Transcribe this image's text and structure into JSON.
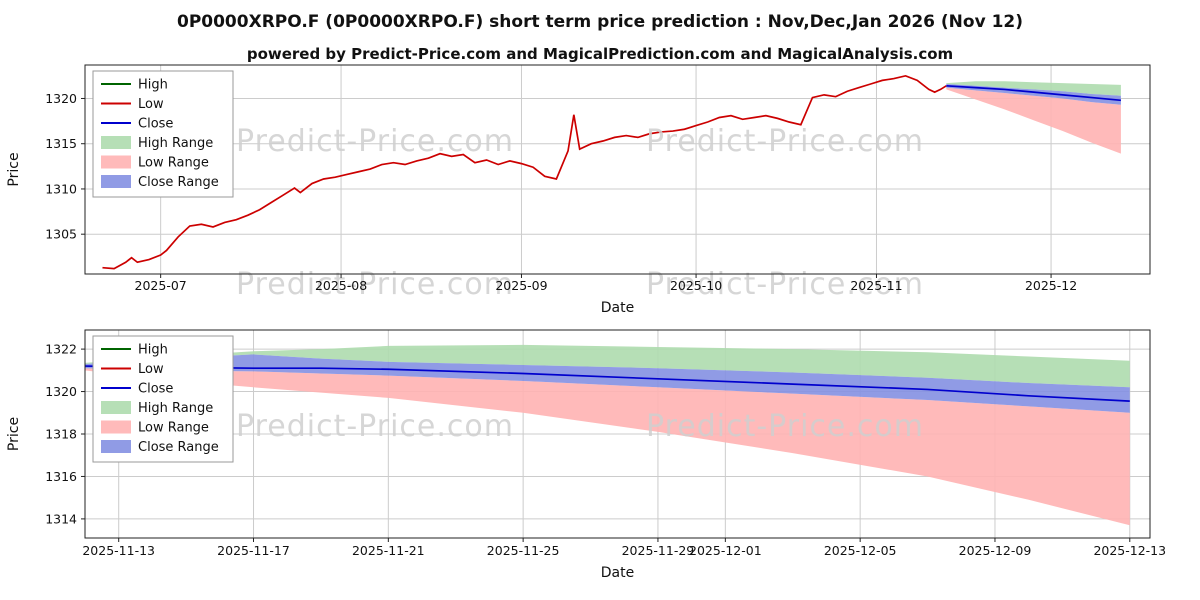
{
  "header": {
    "title": "0P0000XRPO.F (0P0000XRPO.F) short term price prediction : Nov,Dec,Jan 2026 (Nov 12)",
    "subtitle": "powered by Predict-Price.com and MagicalPrediction.com and MagicalAnalysis.com"
  },
  "watermark": "Predict-Price.com",
  "colors": {
    "high": "#006400",
    "low": "#cc0000",
    "close": "#0000cd",
    "high_range": "#aedcae",
    "low_range": "#ffb3b3",
    "close_range": "#8490e2",
    "grid": "#cccccc",
    "frame": "#222222",
    "watermark": "#cfcfcf"
  },
  "legend": [
    {
      "label": "High",
      "type": "line",
      "color": "high"
    },
    {
      "label": "Low",
      "type": "line",
      "color": "low"
    },
    {
      "label": "Close",
      "type": "line",
      "color": "close"
    },
    {
      "label": "High Range",
      "type": "band",
      "color": "high_range"
    },
    {
      "label": "Low Range",
      "type": "band",
      "color": "low_range"
    },
    {
      "label": "Close Range",
      "type": "band",
      "color": "close_range"
    }
  ],
  "chart_data": [
    {
      "type": "line",
      "name": "history-with-forecast",
      "xlabel": "Date",
      "ylabel": "Price",
      "x_unit": "days since 2025-06-18",
      "xlim": [
        0,
        183
      ],
      "ylim": [
        1300.6,
        1323.7
      ],
      "x_ticks": [
        {
          "v": 13,
          "label": "2025-07"
        },
        {
          "v": 44,
          "label": "2025-08"
        },
        {
          "v": 75,
          "label": "2025-09"
        },
        {
          "v": 105,
          "label": "2025-10"
        },
        {
          "v": 136,
          "label": "2025-11"
        },
        {
          "v": 166,
          "label": "2025-12"
        }
      ],
      "y_ticks": [
        1305,
        1310,
        1315,
        1320
      ],
      "grid": true,
      "legend_position": "upper-left",
      "lines": [
        {
          "name": "low-history",
          "color": "low",
          "points": [
            [
              3,
              1301.3
            ],
            [
              5,
              1301.2
            ],
            [
              7,
              1301.9
            ],
            [
              8,
              1302.4
            ],
            [
              9,
              1301.9
            ],
            [
              11,
              1302.2
            ],
            [
              13,
              1302.7
            ],
            [
              14,
              1303.2
            ],
            [
              16,
              1304.7
            ],
            [
              18,
              1305.9
            ],
            [
              20,
              1306.1
            ],
            [
              22,
              1305.8
            ],
            [
              24,
              1306.3
            ],
            [
              26,
              1306.6
            ],
            [
              28,
              1307.1
            ],
            [
              30,
              1307.7
            ],
            [
              32,
              1308.5
            ],
            [
              34,
              1309.3
            ],
            [
              36,
              1310.1
            ],
            [
              37,
              1309.6
            ],
            [
              39,
              1310.6
            ],
            [
              41,
              1311.1
            ],
            [
              43,
              1311.3
            ],
            [
              45,
              1311.6
            ],
            [
              47,
              1311.9
            ],
            [
              49,
              1312.2
            ],
            [
              51,
              1312.7
            ],
            [
              53,
              1312.9
            ],
            [
              55,
              1312.7
            ],
            [
              57,
              1313.1
            ],
            [
              59,
              1313.4
            ],
            [
              61,
              1313.9
            ],
            [
              63,
              1313.6
            ],
            [
              65,
              1313.8
            ],
            [
              67,
              1312.9
            ],
            [
              69,
              1313.2
            ],
            [
              71,
              1312.7
            ],
            [
              73,
              1313.1
            ],
            [
              75,
              1312.8
            ],
            [
              77,
              1312.4
            ],
            [
              79,
              1311.4
            ],
            [
              81,
              1311.1
            ],
            [
              83,
              1314.2
            ],
            [
              84,
              1318.2
            ],
            [
              85,
              1314.4
            ],
            [
              87,
              1315.0
            ],
            [
              89,
              1315.3
            ],
            [
              91,
              1315.7
            ],
            [
              93,
              1315.9
            ],
            [
              95,
              1315.7
            ],
            [
              97,
              1316.1
            ],
            [
              99,
              1316.3
            ],
            [
              101,
              1316.4
            ],
            [
              103,
              1316.6
            ],
            [
              105,
              1317.0
            ],
            [
              107,
              1317.4
            ],
            [
              109,
              1317.9
            ],
            [
              111,
              1318.1
            ],
            [
              113,
              1317.7
            ],
            [
              115,
              1317.9
            ],
            [
              117,
              1318.1
            ],
            [
              119,
              1317.8
            ],
            [
              121,
              1317.4
            ],
            [
              123,
              1317.1
            ],
            [
              125,
              1320.1
            ],
            [
              127,
              1320.4
            ],
            [
              129,
              1320.2
            ],
            [
              131,
              1320.8
            ],
            [
              133,
              1321.2
            ],
            [
              135,
              1321.6
            ],
            [
              137,
              1322.0
            ],
            [
              139,
              1322.2
            ],
            [
              141,
              1322.5
            ],
            [
              143,
              1322.0
            ],
            [
              145,
              1321.0
            ],
            [
              146,
              1320.7
            ],
            [
              147,
              1321.0
            ],
            [
              148,
              1321.4
            ]
          ]
        },
        {
          "name": "close-forecast",
          "color": "close",
          "points": [
            [
              148,
              1321.4
            ],
            [
              153,
              1321.2
            ],
            [
              158,
              1321.0
            ],
            [
              163,
              1320.7
            ],
            [
              168,
              1320.4
            ],
            [
              173,
              1320.1
            ],
            [
              178,
              1319.8
            ]
          ]
        }
      ],
      "bands": [
        {
          "name": "high-range-band",
          "color": "high_range",
          "x": [
            148,
            153,
            158,
            163,
            168,
            173,
            178
          ],
          "top": [
            1321.7,
            1321.9,
            1321.9,
            1321.8,
            1321.7,
            1321.6,
            1321.5
          ],
          "bottom": [
            1321.6,
            1321.4,
            1321.2,
            1321.0,
            1320.8,
            1320.5,
            1320.3
          ]
        },
        {
          "name": "low-range-band",
          "color": "low_range",
          "x": [
            148,
            153,
            158,
            163,
            168,
            173,
            178
          ],
          "top": [
            1321.2,
            1320.9,
            1320.6,
            1320.3,
            1320.0,
            1319.6,
            1319.3
          ],
          "bottom": [
            1321.0,
            1319.9,
            1318.8,
            1317.6,
            1316.4,
            1315.1,
            1313.9
          ]
        },
        {
          "name": "close-range-band",
          "color": "close_range",
          "x": [
            148,
            153,
            158,
            163,
            168,
            173,
            178
          ],
          "top": [
            1321.6,
            1321.4,
            1321.2,
            1321.0,
            1320.8,
            1320.5,
            1320.3
          ],
          "bottom": [
            1321.2,
            1320.9,
            1320.6,
            1320.3,
            1320.0,
            1319.6,
            1319.3
          ]
        }
      ]
    },
    {
      "type": "line",
      "name": "forecast-zoom",
      "xlabel": "Date",
      "ylabel": "Price",
      "x_unit": "days since 2025-11-12",
      "xlim": [
        0,
        31.6
      ],
      "ylim": [
        1313.1,
        1322.9
      ],
      "x_ticks": [
        {
          "v": 1,
          "label": "2025-11-13"
        },
        {
          "v": 5,
          "label": "2025-11-17"
        },
        {
          "v": 9,
          "label": "2025-11-21"
        },
        {
          "v": 13,
          "label": "2025-11-25"
        },
        {
          "v": 17,
          "label": "2025-11-29"
        },
        {
          "v": 19,
          "label": "2025-12-01"
        },
        {
          "v": 23,
          "label": "2025-12-05"
        },
        {
          "v": 27,
          "label": "2025-12-09"
        },
        {
          "v": 31,
          "label": "2025-12-13"
        }
      ],
      "y_ticks": [
        1314,
        1316,
        1318,
        1320,
        1322
      ],
      "grid": true,
      "legend_position": "upper-left",
      "lines": [
        {
          "name": "close-forecast",
          "color": "close",
          "points": [
            [
              0,
              1321.2
            ],
            [
              2,
              1321.15
            ],
            [
              5,
              1321.1
            ],
            [
              7,
              1321.1
            ],
            [
              9,
              1321.05
            ],
            [
              13,
              1320.85
            ],
            [
              17,
              1320.6
            ],
            [
              21,
              1320.35
            ],
            [
              25,
              1320.1
            ],
            [
              28,
              1319.8
            ],
            [
              31,
              1319.55
            ]
          ]
        }
      ],
      "bands": [
        {
          "name": "high-range-band",
          "color": "high_range",
          "x": [
            0,
            2,
            5,
            7,
            9,
            13,
            17,
            21,
            25,
            28,
            31
          ],
          "top": [
            1321.35,
            1321.6,
            1321.9,
            1322.0,
            1322.15,
            1322.2,
            1322.1,
            1322.0,
            1321.85,
            1321.65,
            1321.45
          ],
          "bottom": [
            1321.3,
            1321.5,
            1321.75,
            1321.55,
            1321.4,
            1321.25,
            1321.1,
            1320.9,
            1320.65,
            1320.4,
            1320.2
          ]
        },
        {
          "name": "low-range-band",
          "color": "low_range",
          "x": [
            0,
            2,
            5,
            7,
            9,
            13,
            17,
            21,
            25,
            28,
            31
          ],
          "top": [
            1321.1,
            1321.0,
            1320.95,
            1320.85,
            1320.75,
            1320.5,
            1320.2,
            1319.9,
            1319.6,
            1319.3,
            1319.0
          ],
          "bottom": [
            1321.0,
            1320.6,
            1320.2,
            1319.95,
            1319.7,
            1319.0,
            1318.1,
            1317.1,
            1316.0,
            1314.9,
            1313.7
          ]
        },
        {
          "name": "close-range-band",
          "color": "close_range",
          "x": [
            0,
            2,
            5,
            7,
            9,
            13,
            17,
            21,
            25,
            28,
            31
          ],
          "top": [
            1321.3,
            1321.5,
            1321.75,
            1321.55,
            1321.4,
            1321.25,
            1321.1,
            1320.9,
            1320.65,
            1320.4,
            1320.2
          ],
          "bottom": [
            1321.1,
            1321.0,
            1320.95,
            1320.85,
            1320.75,
            1320.5,
            1320.2,
            1319.9,
            1319.6,
            1319.3,
            1319.0
          ]
        }
      ]
    }
  ]
}
